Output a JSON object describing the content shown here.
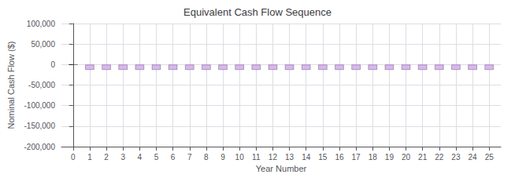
{
  "chart_data": {
    "type": "bar",
    "title": "Equivalent Cash Flow Sequence",
    "xlabel": "Year Number",
    "ylabel": "Nominal Cash Flow ($)",
    "x": [
      0,
      1,
      2,
      3,
      4,
      5,
      6,
      7,
      8,
      9,
      10,
      11,
      12,
      13,
      14,
      15,
      16,
      17,
      18,
      19,
      20,
      21,
      22,
      23,
      24,
      25
    ],
    "values": [
      0,
      -13000,
      -13000,
      -13000,
      -13000,
      -13000,
      -13000,
      -13000,
      -13000,
      -13000,
      -13000,
      -13000,
      -13000,
      -13000,
      -13000,
      -13000,
      -13000,
      -13000,
      -13000,
      -13000,
      -13000,
      -13000,
      -13000,
      -13000,
      -13000,
      -13000
    ],
    "color": "#dbb4f5",
    "xlim": [
      -0.7,
      25.7
    ],
    "xticks": [
      0,
      1,
      2,
      3,
      4,
      5,
      6,
      7,
      8,
      9,
      10,
      11,
      12,
      13,
      14,
      15,
      16,
      17,
      18,
      19,
      20,
      21,
      22,
      23,
      24,
      25
    ],
    "ylim": [
      -200000,
      100000
    ],
    "yticks": [
      {
        "value": -200000,
        "label": "-200,000"
      },
      {
        "value": -150000,
        "label": "-150,000"
      },
      {
        "value": -100000,
        "label": "-100,000"
      },
      {
        "value": -50000,
        "label": "-50,000"
      },
      0,
      {
        "value": 50000,
        "label": "50,000"
      },
      {
        "value": 100000,
        "label": "100,000"
      }
    ],
    "grid": true
  }
}
